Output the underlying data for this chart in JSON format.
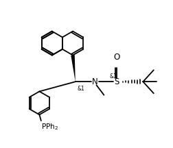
{
  "bg_color": "#ffffff",
  "line_color": "#000000",
  "line_width": 1.3,
  "font_size_label": 7.5,
  "font_size_small": 5.5,
  "figsize": [
    2.52,
    2.16
  ],
  "dpi": 100,
  "xlim": [
    0,
    10
  ],
  "ylim": [
    0,
    8.6
  ]
}
